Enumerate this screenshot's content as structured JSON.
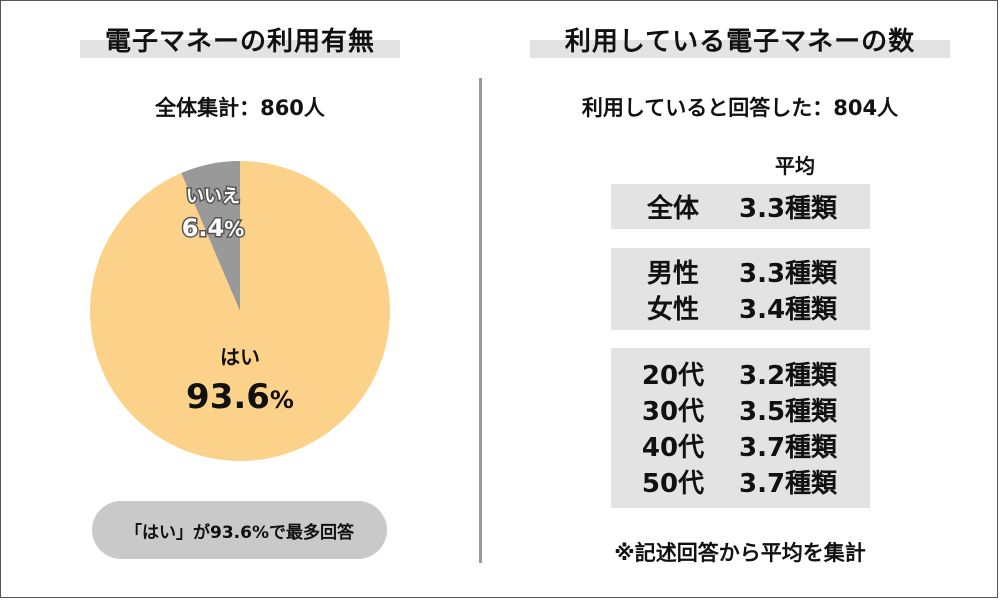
{
  "left": {
    "title": "電子マネーの利用有無",
    "total_label": "全体集計：860人",
    "note": "「はい」が93.6%で最多回答"
  },
  "right": {
    "title": "利用している電子マネーの数",
    "respondents_label": "利用していると回答した：804人",
    "avg_header": "平均",
    "groups": [
      [
        {
          "label": "全体",
          "value": "3.3種類"
        }
      ],
      [
        {
          "label": "男性",
          "value": "3.3種類"
        },
        {
          "label": "女性",
          "value": "3.4種類"
        }
      ],
      [
        {
          "label": "20代",
          "value": "3.2種類"
        },
        {
          "label": "30代",
          "value": "3.5種類"
        },
        {
          "label": "40代",
          "value": "3.7種類"
        },
        {
          "label": "50代",
          "value": "3.7種類"
        }
      ]
    ],
    "footnote": "※記述回答から平均を集計"
  },
  "chart_data": {
    "type": "pie",
    "title": "電子マネーの利用有無",
    "subtitle": "全体集計：860人",
    "slices": [
      {
        "label": "はい",
        "value": 93.6,
        "display": "93.6",
        "unit": "%",
        "color": "#fcd28a"
      },
      {
        "label": "いいえ",
        "value": 6.4,
        "display": "6.4",
        "unit": "%",
        "color": "#999999"
      }
    ]
  }
}
